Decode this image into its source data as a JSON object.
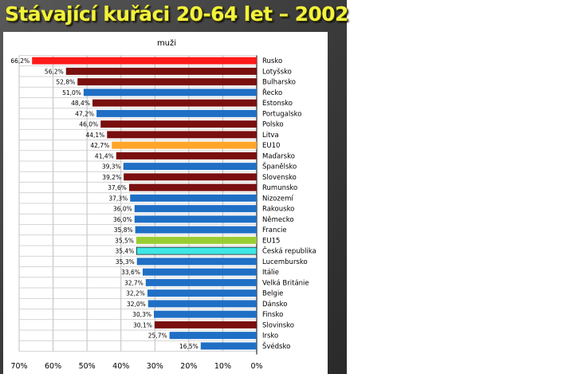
{
  "slide": {
    "title": "Stávající kuřáci 20-64 let – 2002"
  },
  "colors": {
    "background": "#404040",
    "title": "#f3f23b",
    "highlight_red": "#ff1a1a",
    "dark_red": "#7a0f0f",
    "blue": "#1f6fc5",
    "orange": "#ffa52a",
    "green": "#9acd32",
    "cyan": "#3ee6e6"
  },
  "chart_data": {
    "type": "bar",
    "orientation": "horizontal",
    "title": "muži",
    "xlim": [
      70,
      0
    ],
    "xticks": [
      "70%",
      "60%",
      "50%",
      "40%",
      "30%",
      "20%",
      "10%",
      "0%"
    ],
    "grid": true,
    "categories": [
      "Rusko",
      "Lotyšsko",
      "Bulharsko",
      "Řecko",
      "Estonsko",
      "Portugalsko",
      "Polsko",
      "Litva",
      "EU10",
      "Maďarsko",
      "Španělsko",
      "Slovensko",
      "Rumunsko",
      "Nizozemí",
      "Rakousko",
      "Německo",
      "Francie",
      "EU15",
      "Česká republika",
      "Lucembursko",
      "Itálie",
      "Velká Británie",
      "Belgie",
      "Dánsko",
      "Finsko",
      "Slovinsko",
      "Irsko",
      "Švédsko"
    ],
    "values": [
      66.2,
      56.2,
      52.8,
      51.0,
      48.4,
      47.2,
      46.0,
      44.1,
      42.7,
      41.4,
      39.3,
      39.2,
      37.6,
      37.3,
      36.0,
      36.0,
      35.8,
      35.5,
      35.4,
      35.3,
      33.6,
      32.7,
      32.2,
      32.0,
      30.3,
      30.1,
      25.7,
      16.5
    ],
    "labels": [
      "66,2%",
      "56,2%",
      "52,8%",
      "51,0%",
      "48,4%",
      "47,2%",
      "46,0%",
      "44,1%",
      "42,7%",
      "41,4%",
      "39,3%",
      "39,2%",
      "37,6%",
      "37,3%",
      "36,0%",
      "36,0%",
      "35,8%",
      "35,5%",
      "35,4%",
      "35,3%",
      "33,6%",
      "32,7%",
      "32,2%",
      "32,0%",
      "30,3%",
      "30,1%",
      "25,7%",
      "16,5%"
    ],
    "bar_colors": [
      "#ff1a1a",
      "#7a0f0f",
      "#7a0f0f",
      "#1f6fc5",
      "#7a0f0f",
      "#1f6fc5",
      "#7a0f0f",
      "#7a0f0f",
      "#ffa52a",
      "#7a0f0f",
      "#1f6fc5",
      "#7a0f0f",
      "#7a0f0f",
      "#1f6fc5",
      "#1f6fc5",
      "#1f6fc5",
      "#1f6fc5",
      "#9acd32",
      "#3ee6e6",
      "#1f6fc5",
      "#1f6fc5",
      "#1f6fc5",
      "#1f6fc5",
      "#1f6fc5",
      "#1f6fc5",
      "#7a0f0f",
      "#1f6fc5",
      "#1f6fc5"
    ]
  }
}
